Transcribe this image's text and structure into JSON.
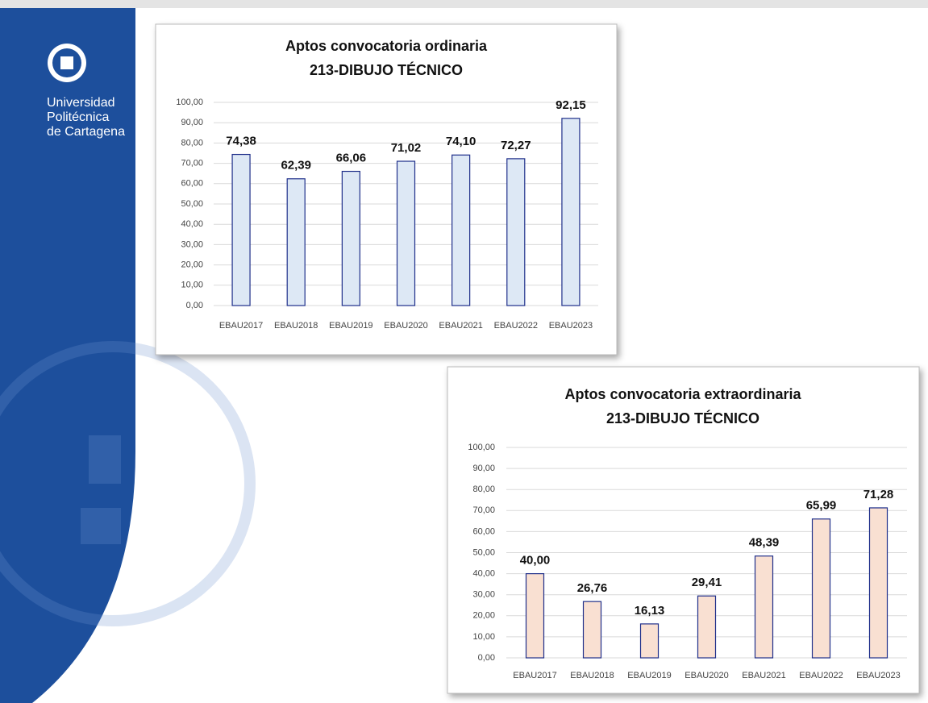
{
  "branding": {
    "lines": [
      "Universidad",
      "Politécnica",
      "de Cartagena"
    ]
  },
  "chart_data": [
    {
      "type": "bar",
      "title": [
        "Aptos convocatoria ordinaria",
        "213-DIBUJO TÉCNICO"
      ],
      "categories": [
        "EBAU2017",
        "EBAU2018",
        "EBAU2019",
        "EBAU2020",
        "EBAU2021",
        "EBAU2022",
        "EBAU2023"
      ],
      "values": [
        74.38,
        62.39,
        66.06,
        71.02,
        74.1,
        72.27,
        92.15
      ],
      "value_labels": [
        "74,38",
        "62,39",
        "66,06",
        "71,02",
        "74,10",
        "72,27",
        "92,15"
      ],
      "color": "#dde8f5",
      "edge_color": "#1f2f8a",
      "ylim": [
        0,
        100
      ],
      "yticks": [
        {
          "value": 0,
          "label": "0,00"
        },
        {
          "value": 10,
          "label": "10,00"
        },
        {
          "value": 20,
          "label": "20,00"
        },
        {
          "value": 30,
          "label": "30,00"
        },
        {
          "value": 40,
          "label": "40,00"
        },
        {
          "value": 50,
          "label": "50,00"
        },
        {
          "value": 60,
          "label": "60,00"
        },
        {
          "value": 70,
          "label": "70,00"
        },
        {
          "value": 80,
          "label": "80,00"
        },
        {
          "value": 90,
          "label": "90,00"
        },
        {
          "value": 100,
          "label": "100,00"
        }
      ],
      "grid": true
    },
    {
      "type": "bar",
      "title": [
        "Aptos convocatoria extraordinaria",
        "213-DIBUJO TÉCNICO"
      ],
      "categories": [
        "EBAU2017",
        "EBAU2018",
        "EBAU2019",
        "EBAU2020",
        "EBAU2021",
        "EBAU2022",
        "EBAU2023"
      ],
      "values": [
        40.0,
        26.76,
        16.13,
        29.41,
        48.39,
        65.99,
        71.28
      ],
      "value_labels": [
        "40,00",
        "26,76",
        "16,13",
        "29,41",
        "48,39",
        "65,99",
        "71,28"
      ],
      "color": "#f9e0d2",
      "edge_color": "#1f2f8a",
      "ylim": [
        0,
        100
      ],
      "yticks": [
        {
          "value": 0,
          "label": "0,00"
        },
        {
          "value": 10,
          "label": "10,00"
        },
        {
          "value": 20,
          "label": "20,00"
        },
        {
          "value": 30,
          "label": "30,00"
        },
        {
          "value": 40,
          "label": "40,00"
        },
        {
          "value": 50,
          "label": "50,00"
        },
        {
          "value": 60,
          "label": "60,00"
        },
        {
          "value": 70,
          "label": "70,00"
        },
        {
          "value": 80,
          "label": "80,00"
        },
        {
          "value": 90,
          "label": "90,00"
        },
        {
          "value": 100,
          "label": "100,00"
        }
      ],
      "grid": true
    }
  ]
}
